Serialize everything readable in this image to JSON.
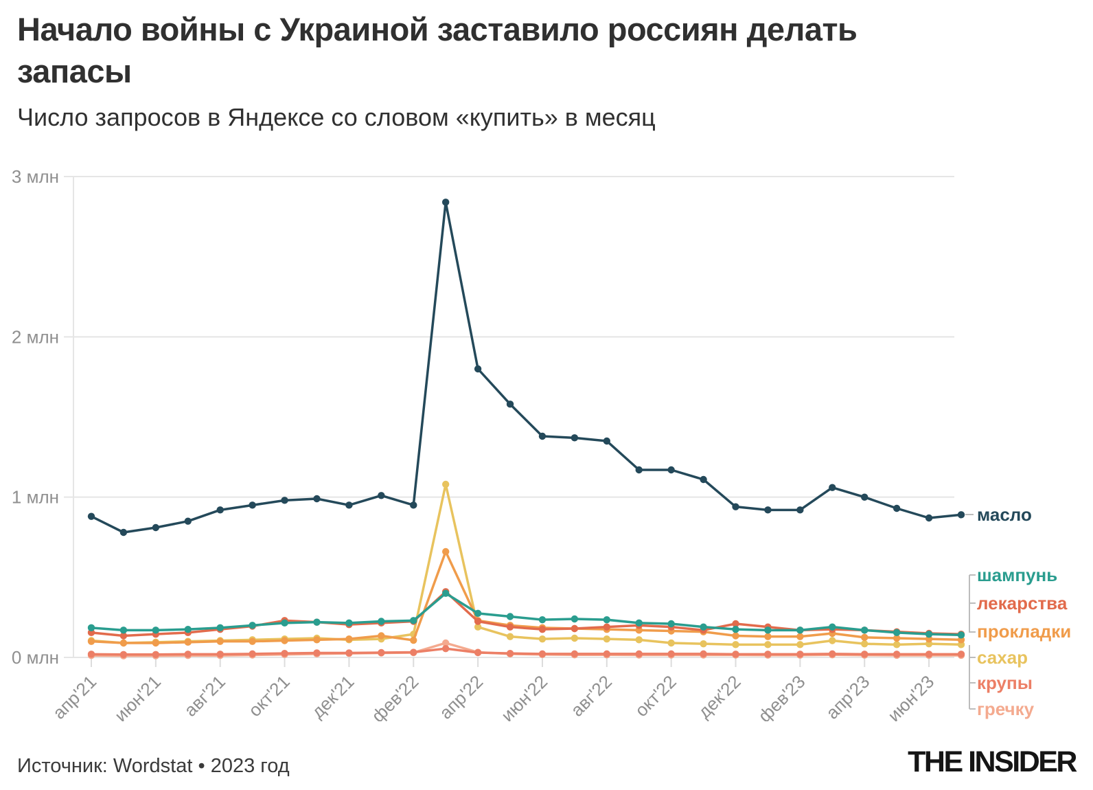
{
  "header": {
    "title_line1": "Начало войны с Украиной заставило россиян делать",
    "title_line2": "запасы",
    "subtitle": "Число запросов в Яндексе со словом «купить» в месяц"
  },
  "footer": {
    "source": "Источник: Wordstat • 2023 год",
    "logo": "THE INSIDER"
  },
  "chart_data": {
    "type": "line",
    "unit": "млн запросов в месяц",
    "ylim": [
      0,
      3
    ],
    "grid": "horizontal",
    "legend_position": "right",
    "x": [
      "апр'21",
      "май'21",
      "июн'21",
      "июл'21",
      "авг'21",
      "сен'21",
      "окт'21",
      "ноя'21",
      "дек'21",
      "янв'22",
      "фев'22",
      "мар'22",
      "апр'22",
      "май'22",
      "июн'22",
      "июл'22",
      "авг'22",
      "сен'22",
      "окт'22",
      "ноя'22",
      "дек'22",
      "янв'23",
      "фев'23",
      "мар'23",
      "апр'23",
      "май'23",
      "июн'23",
      "июл'23"
    ],
    "x_tick_labels": [
      "апр'21",
      "июн'21",
      "авг'21",
      "окт'21",
      "дек'21",
      "фев'22",
      "апр'22",
      "июн'22",
      "авг'22",
      "окт'22",
      "дек'22",
      "фев'23",
      "апр'23",
      "июн'23"
    ],
    "y_ticks": [
      {
        "value": 0,
        "label": "0 млн"
      },
      {
        "value": 1,
        "label": "1 млн"
      },
      {
        "value": 2,
        "label": "2 млн"
      },
      {
        "value": 3,
        "label": "3 млн"
      }
    ],
    "series": [
      {
        "name": "масло",
        "key": "maslo",
        "color": "#24495a",
        "values": [
          0.88,
          0.78,
          0.81,
          0.85,
          0.92,
          0.95,
          0.98,
          0.99,
          0.95,
          1.01,
          0.95,
          2.84,
          1.8,
          1.58,
          1.38,
          1.37,
          1.35,
          1.17,
          1.17,
          1.11,
          0.94,
          0.92,
          0.92,
          1.06,
          1.0,
          0.93,
          0.87,
          0.89
        ]
      },
      {
        "name": "шампунь",
        "key": "shampun",
        "color": "#2a9d8f",
        "values": [
          0.185,
          0.17,
          0.17,
          0.175,
          0.185,
          0.2,
          0.215,
          0.22,
          0.215,
          0.225,
          0.23,
          0.4,
          0.275,
          0.255,
          0.235,
          0.24,
          0.235,
          0.215,
          0.21,
          0.19,
          0.175,
          0.17,
          0.17,
          0.19,
          0.17,
          0.155,
          0.145,
          0.14
        ]
      },
      {
        "name": "лекарства",
        "key": "lekarstva",
        "color": "#e26b4c",
        "values": [
          0.155,
          0.135,
          0.145,
          0.155,
          0.175,
          0.195,
          0.23,
          0.22,
          0.205,
          0.215,
          0.225,
          0.41,
          0.225,
          0.19,
          0.175,
          0.18,
          0.19,
          0.2,
          0.19,
          0.17,
          0.21,
          0.19,
          0.17,
          0.175,
          0.17,
          0.16,
          0.15,
          0.145
        ]
      },
      {
        "name": "прокладки",
        "key": "prokladki",
        "color": "#f09c4b",
        "values": [
          0.1,
          0.09,
          0.09,
          0.095,
          0.1,
          0.1,
          0.105,
          0.11,
          0.115,
          0.135,
          0.107,
          0.66,
          0.23,
          0.2,
          0.185,
          0.18,
          0.175,
          0.17,
          0.165,
          0.16,
          0.135,
          0.13,
          0.13,
          0.15,
          0.125,
          0.12,
          0.115,
          0.11
        ]
      },
      {
        "name": "сахар",
        "key": "sahar",
        "color": "#e8c35e",
        "values": [
          0.105,
          0.09,
          0.095,
          0.1,
          0.105,
          0.11,
          0.115,
          0.12,
          0.11,
          0.115,
          0.145,
          1.08,
          0.19,
          0.13,
          0.115,
          0.12,
          0.115,
          0.11,
          0.09,
          0.085,
          0.08,
          0.08,
          0.08,
          0.105,
          0.085,
          0.08,
          0.085,
          0.08
        ]
      },
      {
        "name": "крупы",
        "key": "krupy",
        "color": "#ec7f66",
        "values": [
          0.02,
          0.018,
          0.018,
          0.02,
          0.02,
          0.022,
          0.025,
          0.028,
          0.028,
          0.03,
          0.032,
          0.055,
          0.03,
          0.025,
          0.022,
          0.022,
          0.022,
          0.022,
          0.022,
          0.022,
          0.02,
          0.02,
          0.02,
          0.022,
          0.02,
          0.02,
          0.02,
          0.02
        ]
      },
      {
        "name": "гречку",
        "key": "grechku",
        "color": "#f4aa8f",
        "values": [
          0.012,
          0.01,
          0.01,
          0.012,
          0.012,
          0.015,
          0.018,
          0.022,
          0.025,
          0.028,
          0.03,
          0.09,
          0.032,
          0.022,
          0.018,
          0.016,
          0.016,
          0.015,
          0.015,
          0.015,
          0.015,
          0.014,
          0.014,
          0.016,
          0.014,
          0.013,
          0.013,
          0.013
        ]
      }
    ]
  }
}
